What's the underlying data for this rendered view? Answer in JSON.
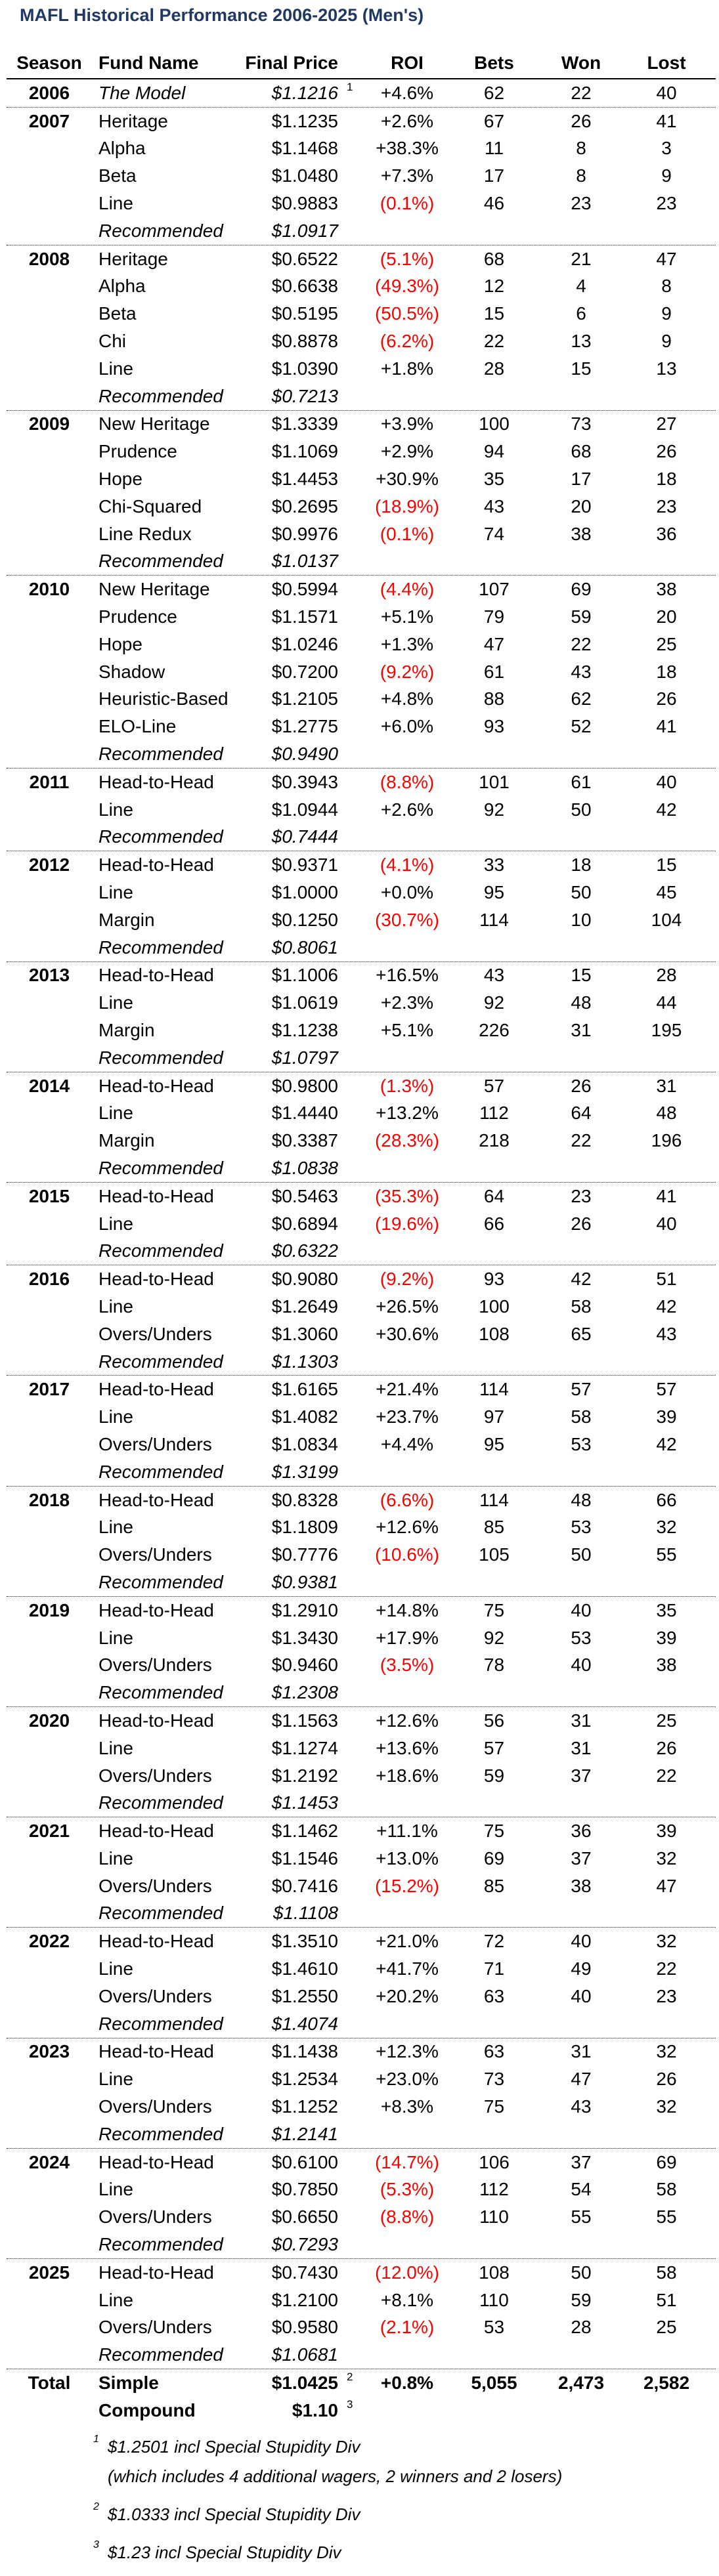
{
  "title": "MAFL Historical Performance 2006-2025 (Men's)",
  "columns": [
    "Season",
    "Fund Name",
    "Final Price",
    "ROI",
    "Bets",
    "Won",
    "Lost"
  ],
  "colors": {
    "title_accent": "#203864",
    "negative_roi": "#FF0000",
    "text": "#000000"
  },
  "seasons": [
    {
      "label": "2006",
      "rows": [
        {
          "fund": "The Model",
          "italic": true,
          "price": "$1.1216",
          "sup": "1",
          "roi": "+4.6%",
          "neg": false,
          "bets": "62",
          "won": "22",
          "lost": "40"
        }
      ]
    },
    {
      "label": "2007",
      "rows": [
        {
          "fund": "Heritage",
          "price": "$1.1235",
          "roi": "+2.6%",
          "neg": false,
          "bets": "67",
          "won": "26",
          "lost": "41"
        },
        {
          "fund": "Alpha",
          "price": "$1.1468",
          "roi": "+38.3%",
          "neg": false,
          "bets": "11",
          "won": "8",
          "lost": "3"
        },
        {
          "fund": "Beta",
          "price": "$1.0480",
          "roi": "+7.3%",
          "neg": false,
          "bets": "17",
          "won": "8",
          "lost": "9"
        },
        {
          "fund": "Line",
          "price": "$0.9883",
          "roi": "(0.1%)",
          "neg": true,
          "bets": "46",
          "won": "23",
          "lost": "23"
        },
        {
          "fund": "Recommended",
          "italic": true,
          "price": "$1.0917"
        }
      ]
    },
    {
      "label": "2008",
      "rows": [
        {
          "fund": "Heritage",
          "price": "$0.6522",
          "roi": "(5.1%)",
          "neg": true,
          "bets": "68",
          "won": "21",
          "lost": "47"
        },
        {
          "fund": "Alpha",
          "price": "$0.6638",
          "roi": "(49.3%)",
          "neg": true,
          "bets": "12",
          "won": "4",
          "lost": "8"
        },
        {
          "fund": "Beta",
          "price": "$0.5195",
          "roi": "(50.5%)",
          "neg": true,
          "bets": "15",
          "won": "6",
          "lost": "9"
        },
        {
          "fund": "Chi",
          "price": "$0.8878",
          "roi": "(6.2%)",
          "neg": true,
          "bets": "22",
          "won": "13",
          "lost": "9"
        },
        {
          "fund": "Line",
          "price": "$1.0390",
          "roi": "+1.8%",
          "neg": false,
          "bets": "28",
          "won": "15",
          "lost": "13"
        },
        {
          "fund": "Recommended",
          "italic": true,
          "price": "$0.7213"
        }
      ]
    },
    {
      "label": "2009",
      "rows": [
        {
          "fund": "New Heritage",
          "price": "$1.3339",
          "roi": "+3.9%",
          "neg": false,
          "bets": "100",
          "won": "73",
          "lost": "27"
        },
        {
          "fund": "Prudence",
          "price": "$1.1069",
          "roi": "+2.9%",
          "neg": false,
          "bets": "94",
          "won": "68",
          "lost": "26"
        },
        {
          "fund": "Hope",
          "price": "$1.4453",
          "roi": "+30.9%",
          "neg": false,
          "bets": "35",
          "won": "17",
          "lost": "18"
        },
        {
          "fund": "Chi-Squared",
          "price": "$0.2695",
          "roi": "(18.9%)",
          "neg": true,
          "bets": "43",
          "won": "20",
          "lost": "23"
        },
        {
          "fund": "Line Redux",
          "price": "$0.9976",
          "roi": "(0.1%)",
          "neg": true,
          "bets": "74",
          "won": "38",
          "lost": "36"
        },
        {
          "fund": "Recommended",
          "italic": true,
          "price": "$1.0137"
        }
      ]
    },
    {
      "label": "2010",
      "rows": [
        {
          "fund": "New Heritage",
          "price": "$0.5994",
          "roi": "(4.4%)",
          "neg": true,
          "bets": "107",
          "won": "69",
          "lost": "38"
        },
        {
          "fund": "Prudence",
          "price": "$1.1571",
          "roi": "+5.1%",
          "neg": false,
          "bets": "79",
          "won": "59",
          "lost": "20"
        },
        {
          "fund": "Hope",
          "price": "$1.0246",
          "roi": "+1.3%",
          "neg": false,
          "bets": "47",
          "won": "22",
          "lost": "25"
        },
        {
          "fund": "Shadow",
          "price": "$0.7200",
          "roi": "(9.2%)",
          "neg": true,
          "bets": "61",
          "won": "43",
          "lost": "18"
        },
        {
          "fund": "Heuristic-Based",
          "price": "$1.2105",
          "roi": "+4.8%",
          "neg": false,
          "bets": "88",
          "won": "62",
          "lost": "26"
        },
        {
          "fund": "ELO-Line",
          "price": "$1.2775",
          "roi": "+6.0%",
          "neg": false,
          "bets": "93",
          "won": "52",
          "lost": "41"
        },
        {
          "fund": "Recommended",
          "italic": true,
          "price": "$0.9490"
        }
      ]
    },
    {
      "label": "2011",
      "rows": [
        {
          "fund": "Head-to-Head",
          "price": "$0.3943",
          "roi": "(8.8%)",
          "neg": true,
          "bets": "101",
          "won": "61",
          "lost": "40"
        },
        {
          "fund": "Line",
          "price": "$1.0944",
          "roi": "+2.6%",
          "neg": false,
          "bets": "92",
          "won": "50",
          "lost": "42"
        },
        {
          "fund": "Recommended",
          "italic": true,
          "price": "$0.7444"
        }
      ]
    },
    {
      "label": "2012",
      "rows": [
        {
          "fund": "Head-to-Head",
          "price": "$0.9371",
          "roi": "(4.1%)",
          "neg": true,
          "bets": "33",
          "won": "18",
          "lost": "15"
        },
        {
          "fund": "Line",
          "price": "$1.0000",
          "roi": "+0.0%",
          "neg": false,
          "bets": "95",
          "won": "50",
          "lost": "45"
        },
        {
          "fund": "Margin",
          "price": "$0.1250",
          "roi": "(30.7%)",
          "neg": true,
          "bets": "114",
          "won": "10",
          "lost": "104"
        },
        {
          "fund": "Recommended",
          "italic": true,
          "price": "$0.8061"
        }
      ]
    },
    {
      "label": "2013",
      "rows": [
        {
          "fund": "Head-to-Head",
          "price": "$1.1006",
          "roi": "+16.5%",
          "neg": false,
          "bets": "43",
          "won": "15",
          "lost": "28"
        },
        {
          "fund": "Line",
          "price": "$1.0619",
          "roi": "+2.3%",
          "neg": false,
          "bets": "92",
          "won": "48",
          "lost": "44"
        },
        {
          "fund": "Margin",
          "price": "$1.1238",
          "roi": "+5.1%",
          "neg": false,
          "bets": "226",
          "won": "31",
          "lost": "195"
        },
        {
          "fund": "Recommended",
          "italic": true,
          "price": "$1.0797"
        }
      ]
    },
    {
      "label": "2014",
      "rows": [
        {
          "fund": "Head-to-Head",
          "price": "$0.9800",
          "roi": "(1.3%)",
          "neg": true,
          "bets": "57",
          "won": "26",
          "lost": "31"
        },
        {
          "fund": "Line",
          "price": "$1.4440",
          "roi": "+13.2%",
          "neg": false,
          "bets": "112",
          "won": "64",
          "lost": "48"
        },
        {
          "fund": "Margin",
          "price": "$0.3387",
          "roi": "(28.3%)",
          "neg": true,
          "bets": "218",
          "won": "22",
          "lost": "196"
        },
        {
          "fund": "Recommended",
          "italic": true,
          "price": "$1.0838"
        }
      ]
    },
    {
      "label": "2015",
      "rows": [
        {
          "fund": "Head-to-Head",
          "price": "$0.5463",
          "roi": "(35.3%)",
          "neg": true,
          "bets": "64",
          "won": "23",
          "lost": "41"
        },
        {
          "fund": "Line",
          "price": "$0.6894",
          "roi": "(19.6%)",
          "neg": true,
          "bets": "66",
          "won": "26",
          "lost": "40"
        },
        {
          "fund": "Recommended",
          "italic": true,
          "price": "$0.6322"
        }
      ]
    },
    {
      "label": "2016",
      "rows": [
        {
          "fund": "Head-to-Head",
          "price": "$0.9080",
          "roi": "(9.2%)",
          "neg": true,
          "bets": "93",
          "won": "42",
          "lost": "51"
        },
        {
          "fund": "Line",
          "price": "$1.2649",
          "roi": "+26.5%",
          "neg": false,
          "bets": "100",
          "won": "58",
          "lost": "42"
        },
        {
          "fund": "Overs/Unders",
          "price": "$1.3060",
          "roi": "+30.6%",
          "neg": false,
          "bets": "108",
          "won": "65",
          "lost": "43"
        },
        {
          "fund": "Recommended",
          "italic": true,
          "price": "$1.1303"
        }
      ]
    },
    {
      "label": "2017",
      "rows": [
        {
          "fund": "Head-to-Head",
          "price": "$1.6165",
          "roi": "+21.4%",
          "neg": false,
          "bets": "114",
          "won": "57",
          "lost": "57"
        },
        {
          "fund": "Line",
          "price": "$1.4082",
          "roi": "+23.7%",
          "neg": false,
          "bets": "97",
          "won": "58",
          "lost": "39"
        },
        {
          "fund": "Overs/Unders",
          "price": "$1.0834",
          "roi": "+4.4%",
          "neg": false,
          "bets": "95",
          "won": "53",
          "lost": "42"
        },
        {
          "fund": "Recommended",
          "italic": true,
          "price": "$1.3199"
        }
      ]
    },
    {
      "label": "2018",
      "rows": [
        {
          "fund": "Head-to-Head",
          "price": "$0.8328",
          "roi": "(6.6%)",
          "neg": true,
          "bets": "114",
          "won": "48",
          "lost": "66"
        },
        {
          "fund": "Line",
          "price": "$1.1809",
          "roi": "+12.6%",
          "neg": false,
          "bets": "85",
          "won": "53",
          "lost": "32"
        },
        {
          "fund": "Overs/Unders",
          "price": "$0.7776",
          "roi": "(10.6%)",
          "neg": true,
          "bets": "105",
          "won": "50",
          "lost": "55"
        },
        {
          "fund": "Recommended",
          "italic": true,
          "price": "$0.9381"
        }
      ]
    },
    {
      "label": "2019",
      "rows": [
        {
          "fund": "Head-to-Head",
          "price": "$1.2910",
          "roi": "+14.8%",
          "neg": false,
          "bets": "75",
          "won": "40",
          "lost": "35"
        },
        {
          "fund": "Line",
          "price": "$1.3430",
          "roi": "+17.9%",
          "neg": false,
          "bets": "92",
          "won": "53",
          "lost": "39"
        },
        {
          "fund": "Overs/Unders",
          "price": "$0.9460",
          "roi": "(3.5%)",
          "neg": true,
          "bets": "78",
          "won": "40",
          "lost": "38"
        },
        {
          "fund": "Recommended",
          "italic": true,
          "price": "$1.2308"
        }
      ]
    },
    {
      "label": "2020",
      "rows": [
        {
          "fund": "Head-to-Head",
          "price": "$1.1563",
          "roi": "+12.6%",
          "neg": false,
          "bets": "56",
          "won": "31",
          "lost": "25"
        },
        {
          "fund": "Line",
          "price": "$1.1274",
          "roi": "+13.6%",
          "neg": false,
          "bets": "57",
          "won": "31",
          "lost": "26"
        },
        {
          "fund": "Overs/Unders",
          "price": "$1.2192",
          "roi": "+18.6%",
          "neg": false,
          "bets": "59",
          "won": "37",
          "lost": "22"
        },
        {
          "fund": "Recommended",
          "italic": true,
          "price": "$1.1453"
        }
      ]
    },
    {
      "label": "2021",
      "rows": [
        {
          "fund": "Head-to-Head",
          "price": "$1.1462",
          "roi": "+11.1%",
          "neg": false,
          "bets": "75",
          "won": "36",
          "lost": "39"
        },
        {
          "fund": "Line",
          "price": "$1.1546",
          "roi": "+13.0%",
          "neg": false,
          "bets": "69",
          "won": "37",
          "lost": "32"
        },
        {
          "fund": "Overs/Unders",
          "price": "$0.7416",
          "roi": "(15.2%)",
          "neg": true,
          "bets": "85",
          "won": "38",
          "lost": "47"
        },
        {
          "fund": "Recommended",
          "italic": true,
          "price": "$1.1108"
        }
      ]
    },
    {
      "label": "2022",
      "rows": [
        {
          "fund": "Head-to-Head",
          "price": "$1.3510",
          "roi": "+21.0%",
          "neg": false,
          "bets": "72",
          "won": "40",
          "lost": "32"
        },
        {
          "fund": "Line",
          "price": "$1.4610",
          "roi": "+41.7%",
          "neg": false,
          "bets": "71",
          "won": "49",
          "lost": "22"
        },
        {
          "fund": "Overs/Unders",
          "price": "$1.2550",
          "roi": "+20.2%",
          "neg": false,
          "bets": "63",
          "won": "40",
          "lost": "23"
        },
        {
          "fund": "Recommended",
          "italic": true,
          "price": "$1.4074"
        }
      ]
    },
    {
      "label": "2023",
      "rows": [
        {
          "fund": "Head-to-Head",
          "price": "$1.1438",
          "roi": "+12.3%",
          "neg": false,
          "bets": "63",
          "won": "31",
          "lost": "32"
        },
        {
          "fund": "Line",
          "price": "$1.2534",
          "roi": "+23.0%",
          "neg": false,
          "bets": "73",
          "won": "47",
          "lost": "26"
        },
        {
          "fund": "Overs/Unders",
          "price": "$1.1252",
          "roi": "+8.3%",
          "neg": false,
          "bets": "75",
          "won": "43",
          "lost": "32"
        },
        {
          "fund": "Recommended",
          "italic": true,
          "price": "$1.2141"
        }
      ]
    },
    {
      "label": "2024",
      "rows": [
        {
          "fund": "Head-to-Head",
          "price": "$0.6100",
          "roi": "(14.7%)",
          "neg": true,
          "bets": "106",
          "won": "37",
          "lost": "69"
        },
        {
          "fund": "Line",
          "price": "$0.7850",
          "roi": "(5.3%)",
          "neg": true,
          "bets": "112",
          "won": "54",
          "lost": "58"
        },
        {
          "fund": "Overs/Unders",
          "price": "$0.6650",
          "roi": "(8.8%)",
          "neg": true,
          "bets": "110",
          "won": "55",
          "lost": "55"
        },
        {
          "fund": "Recommended",
          "italic": true,
          "price": "$0.7293"
        }
      ]
    },
    {
      "label": "2025",
      "rows": [
        {
          "fund": "Head-to-Head",
          "price": "$0.7430",
          "roi": "(12.0%)",
          "neg": true,
          "bets": "108",
          "won": "50",
          "lost": "58"
        },
        {
          "fund": "Line",
          "price": "$1.2100",
          "roi": "+8.1%",
          "neg": false,
          "bets": "110",
          "won": "59",
          "lost": "51"
        },
        {
          "fund": "Overs/Unders",
          "price": "$0.9580",
          "roi": "(2.1%)",
          "neg": true,
          "bets": "53",
          "won": "28",
          "lost": "25"
        },
        {
          "fund": "Recommended",
          "italic": true,
          "price": "$1.0681"
        }
      ]
    },
    {
      "label": "Total",
      "total": true,
      "rows": [
        {
          "fund": "Simple",
          "bold": true,
          "price": "$1.0425",
          "sup": "2",
          "roi": "+0.8%",
          "neg": false,
          "bets": "5,055",
          "won": "2,473",
          "lost": "2,582"
        },
        {
          "fund": "Compound",
          "bold": true,
          "price": "$1.10",
          "sup": "3"
        }
      ]
    }
  ],
  "footnotes": [
    {
      "sup": "1",
      "lines": [
        "$1.2501 incl Special Stupidity Div",
        "(which includes 4 additional wagers, 2 winners and 2 losers)"
      ]
    },
    {
      "sup": "2",
      "lines": [
        "$1.0333 incl Special Stupidity Div"
      ]
    },
    {
      "sup": "3",
      "lines": [
        "$1.23 incl Special Stupidity Div"
      ]
    }
  ]
}
